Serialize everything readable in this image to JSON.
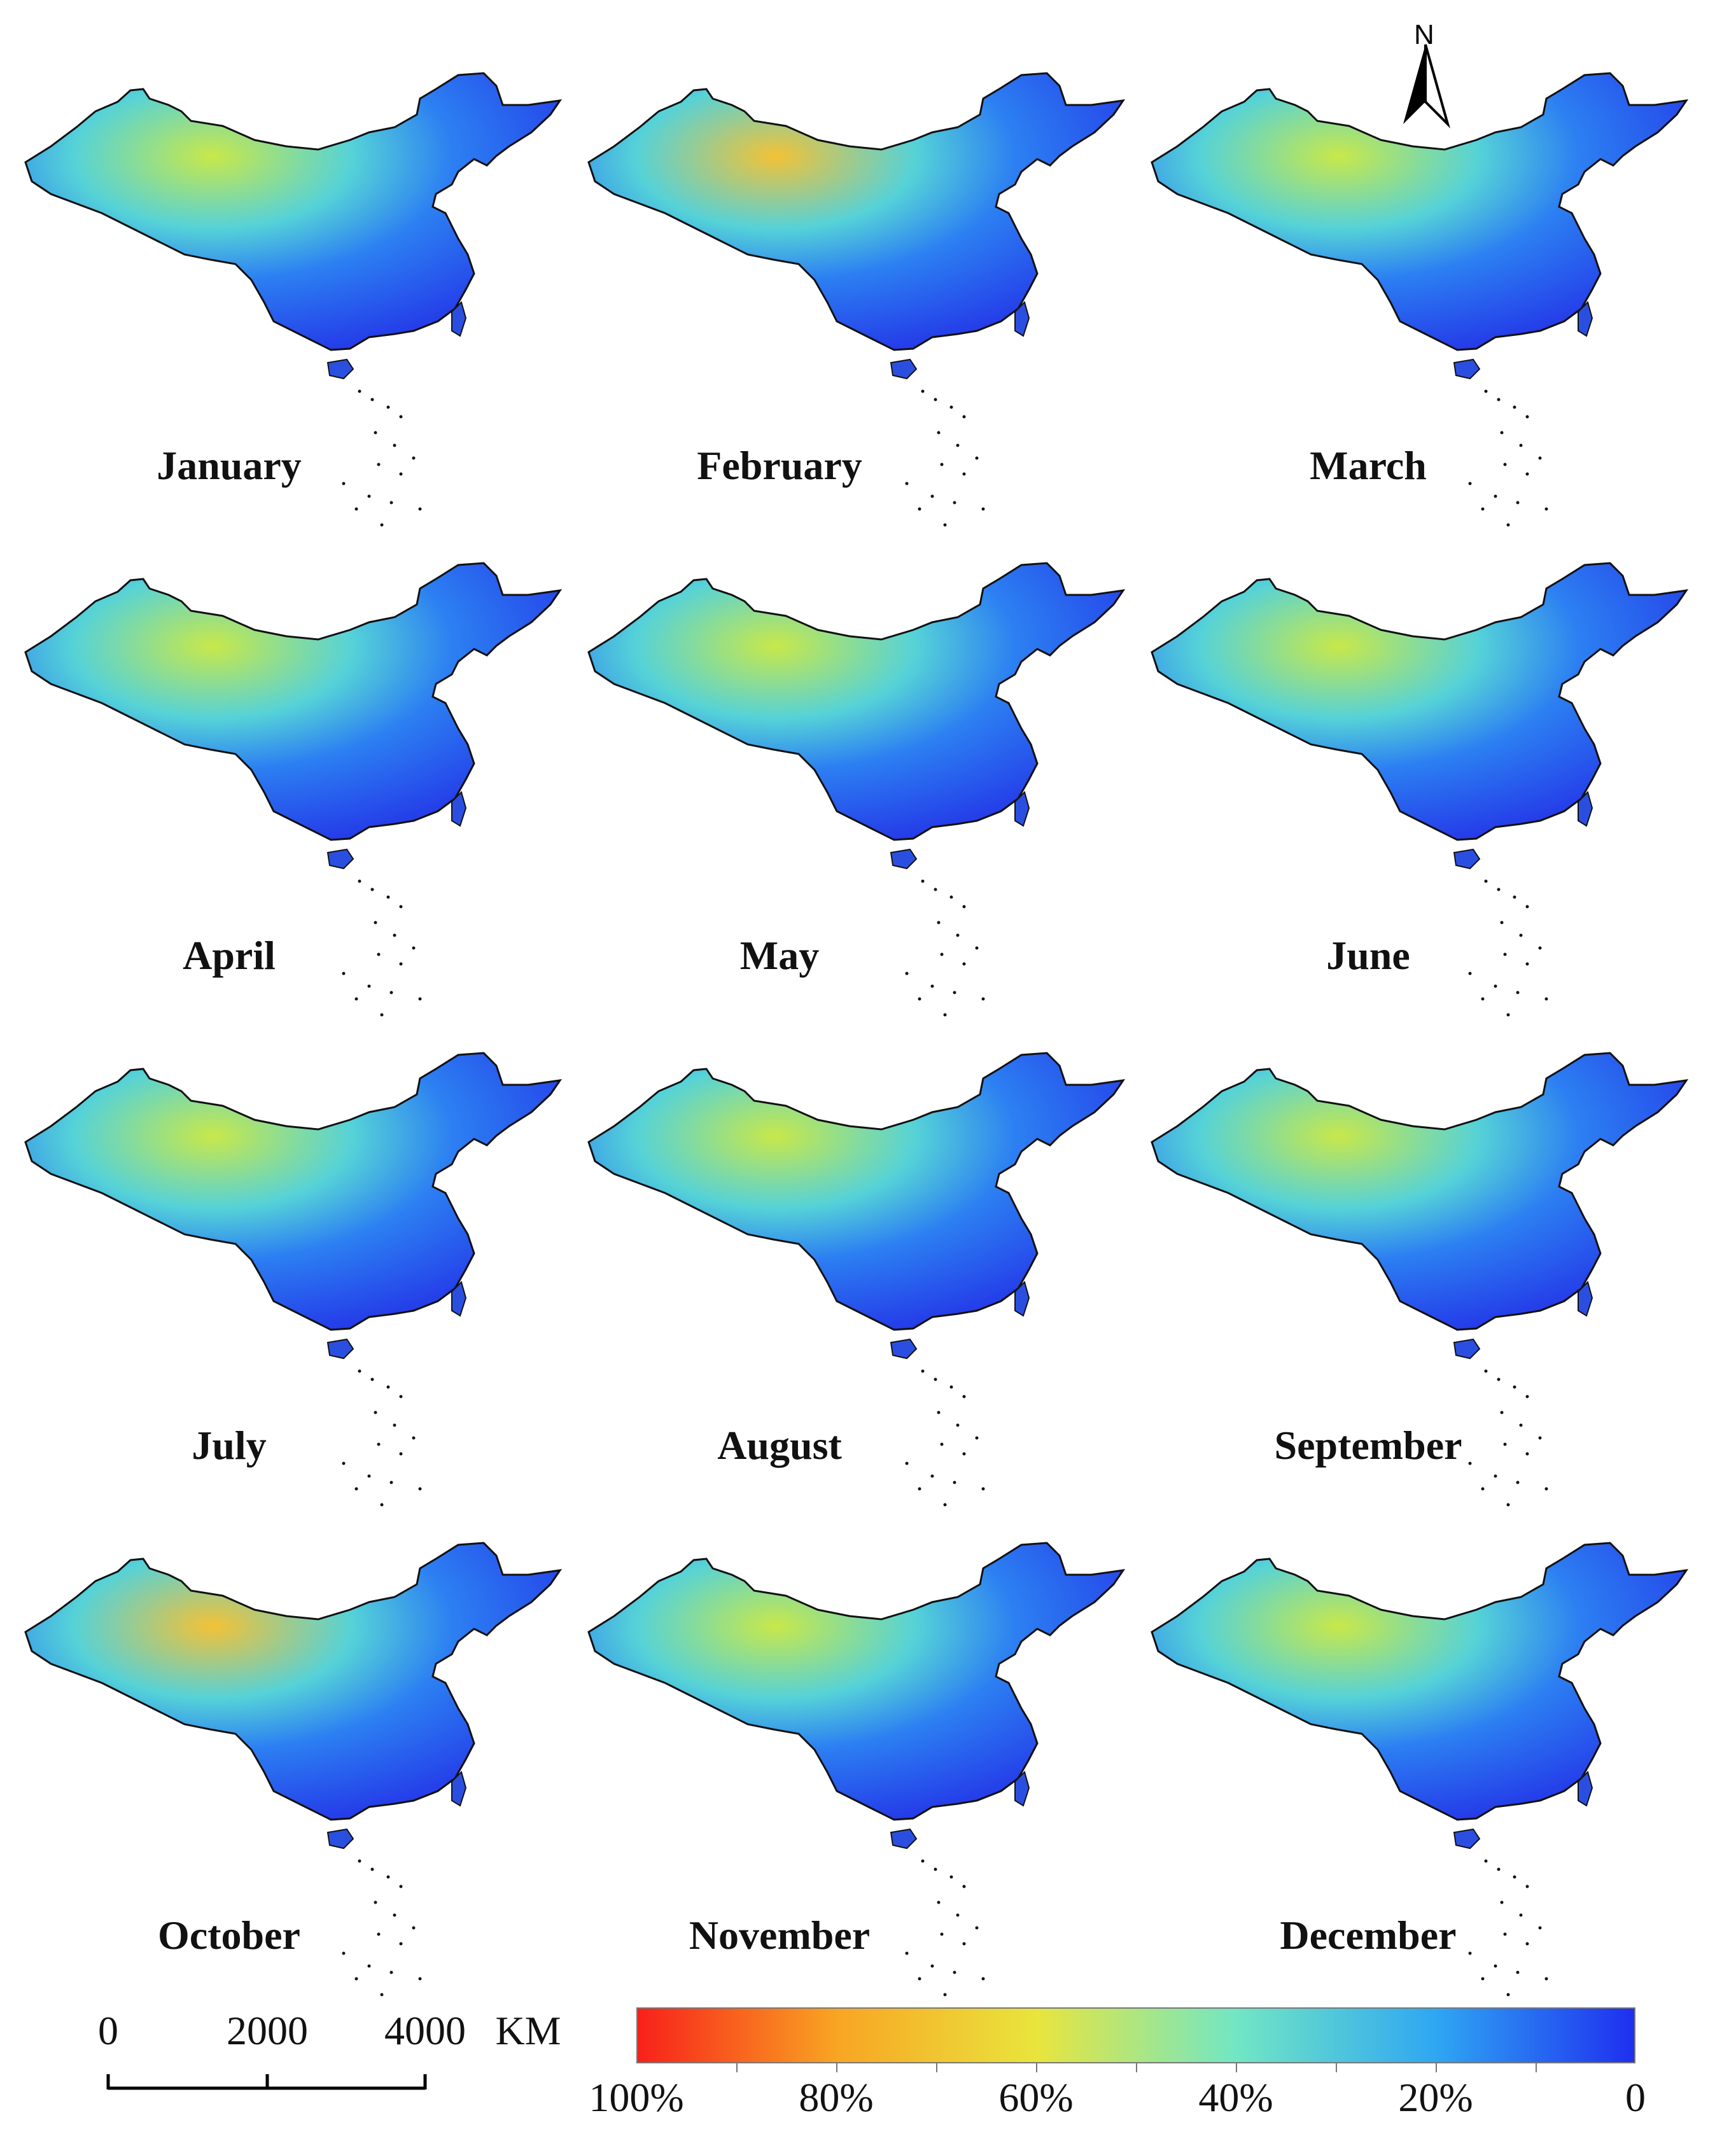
{
  "months": [
    "January",
    "February",
    "March",
    "April",
    "May",
    "June",
    "July",
    "August",
    "September",
    "October",
    "November",
    "December"
  ],
  "north_label": "N",
  "scale": {
    "labels": [
      "0",
      "2000",
      "4000"
    ],
    "unit": "KM"
  },
  "legend": {
    "labels": [
      "100%",
      "80%",
      "60%",
      "40%",
      "20%",
      "0"
    ],
    "colors": [
      "#f8201a",
      "#f8a523",
      "#e9e53d",
      "#72e6c4",
      "#2fa7f2",
      "#1f2ff0"
    ]
  }
}
